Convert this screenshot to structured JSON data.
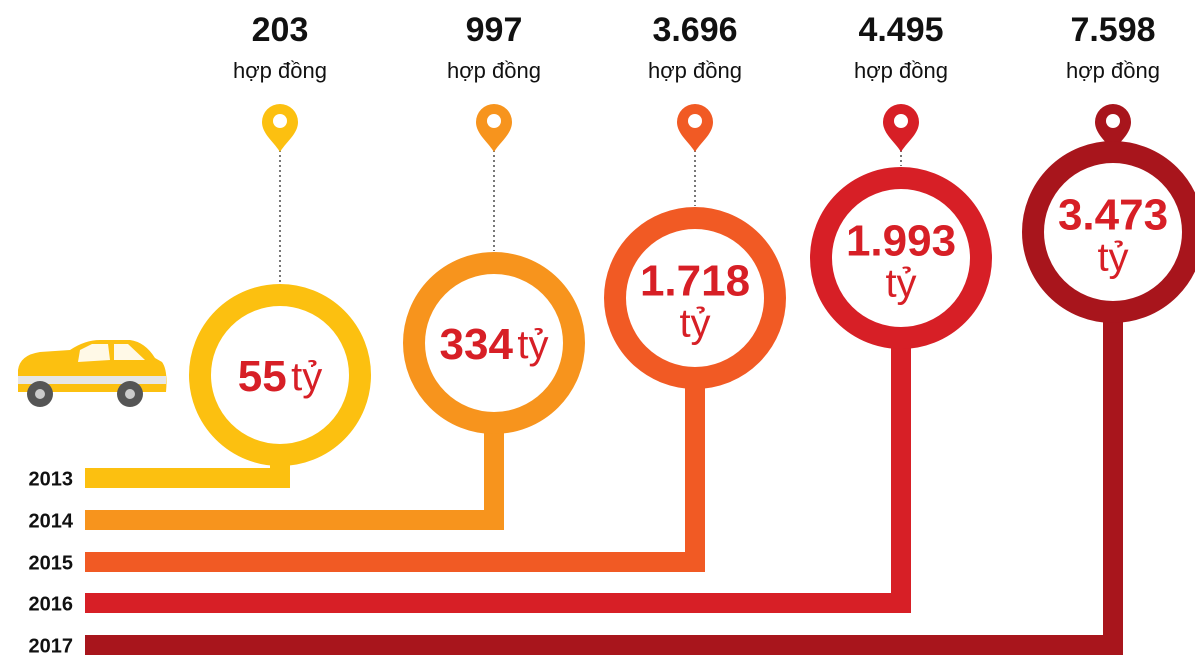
{
  "items": [
    {
      "year": "2013",
      "contracts": "203",
      "contracts_unit": "hợp đồng",
      "amount": "55",
      "amount_unit": "tỷ",
      "color": "#fcc010"
    },
    {
      "year": "2014",
      "contracts": "997",
      "contracts_unit": "hợp đồng",
      "amount": "334",
      "amount_unit": "tỷ",
      "color": "#f7941d"
    },
    {
      "year": "2015",
      "contracts": "3.696",
      "contracts_unit": "hợp đồng",
      "amount": "1.718",
      "amount_unit": "tỷ",
      "color": "#f15a24"
    },
    {
      "year": "2016",
      "contracts": "4.495",
      "contracts_unit": "hợp đồng",
      "amount": "1.993",
      "amount_unit": "tỷ",
      "color": "#d71f26"
    },
    {
      "year": "2017",
      "contracts": "7.598",
      "contracts_unit": "hợp đồng",
      "amount": "3.473",
      "amount_unit": "tỷ",
      "color": "#a8151c"
    }
  ]
}
